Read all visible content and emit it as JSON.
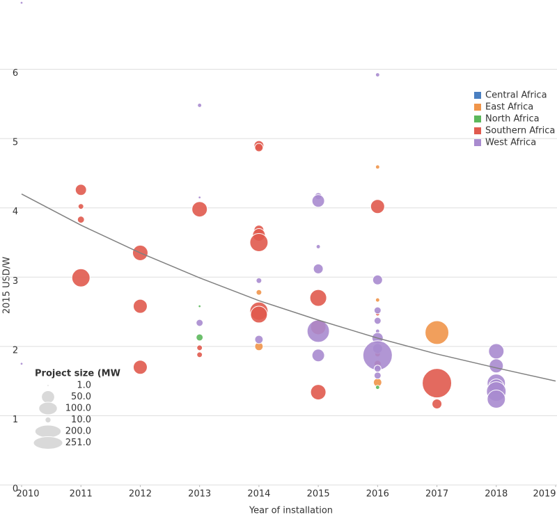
{
  "chart_data": {
    "type": "scatter",
    "xlabel": "Year of installation",
    "ylabel": "2015 USD/W",
    "xlim": [
      2010,
      2019
    ],
    "xticks": [
      2010,
      2011,
      2012,
      2013,
      2014,
      2015,
      2016,
      2017,
      2018,
      2019
    ],
    "ylim": [
      0,
      7
    ],
    "yticks": [
      0,
      1,
      2,
      3,
      4,
      5,
      6
    ],
    "grid": true,
    "legend": "upper right",
    "series": [
      {
        "name": "Central Africa",
        "color": "#4a7fc1",
        "x": [],
        "values": [],
        "sizes": []
      },
      {
        "name": "East Africa",
        "color": "#f0954a",
        "x": [
          2014,
          2014,
          2016,
          2016,
          2016,
          2017
        ],
        "values": [
          2.78,
          2.0,
          4.59,
          2.67,
          1.48,
          2.2
        ],
        "sizes": [
          9,
          20,
          5,
          5,
          20,
          164
        ]
      },
      {
        "name": "North Africa",
        "color": "#5cb85c",
        "x": [
          2013,
          2013,
          2016
        ],
        "values": [
          2.58,
          2.13,
          1.41
        ],
        "sizes": [
          2,
          14,
          5
        ]
      },
      {
        "name": "Southern Africa",
        "color": "#e05a4e",
        "x": [
          2011,
          2011,
          2011,
          2011,
          2012,
          2012,
          2012,
          2013,
          2013,
          2013,
          2014,
          2014,
          2014,
          2014,
          2014,
          2014,
          2014,
          2015,
          2015,
          2015,
          2016,
          2016,
          2016,
          2016,
          2017,
          2017
        ],
        "values": [
          4.26,
          4.02,
          3.83,
          2.99,
          3.35,
          2.58,
          1.7,
          3.98,
          1.98,
          1.88,
          4.9,
          4.87,
          3.68,
          3.61,
          3.5,
          2.51,
          2.46,
          2.7,
          2.28,
          1.34,
          4.02,
          2.47,
          1.89,
          1.75,
          1.47,
          1.17
        ],
        "sizes": [
          36,
          9,
          14,
          96,
          69,
          57,
          57,
          69,
          9,
          9,
          28,
          20,
          28,
          46,
          96,
          96,
          82,
          82,
          69,
          69,
          57,
          5,
          9,
          14,
          251,
          28
        ]
      },
      {
        "name": "West Africa",
        "color": "#a98bcf",
        "x": [
          2010,
          2010,
          2013,
          2013,
          2013,
          2014,
          2014,
          2015,
          2015,
          2015,
          2015,
          2015,
          2015,
          2016,
          2016,
          2016,
          2016,
          2016,
          2016,
          2016,
          2016,
          2016,
          2016,
          2018,
          2018,
          2018,
          2018,
          2018,
          2018
        ],
        "values": [
          6.96,
          1.75,
          5.48,
          4.15,
          2.34,
          2.95,
          2.1,
          4.17,
          4.1,
          3.44,
          3.12,
          2.22,
          1.87,
          5.92,
          2.96,
          2.52,
          2.37,
          2.22,
          2.12,
          1.97,
          1.87,
          1.68,
          1.58,
          1.93,
          1.72,
          1.47,
          1.42,
          1.35,
          1.24
        ],
        "sizes": [
          2,
          2,
          5,
          2,
          14,
          9,
          20,
          14,
          46,
          5,
          28,
          145,
          46,
          5,
          28,
          14,
          14,
          5,
          36,
          28,
          251,
          14,
          14,
          69,
          57,
          96,
          69,
          111,
          96
        ]
      }
    ],
    "trend": {
      "color": "#808080",
      "x": [
        2010,
        2011,
        2012,
        2013,
        2014,
        2015,
        2016,
        2017,
        2018,
        2019
      ],
      "values": [
        4.2,
        3.75,
        3.35,
        2.99,
        2.66,
        2.38,
        2.12,
        1.89,
        1.69,
        1.5
      ]
    },
    "size_legend": {
      "title": "Project size (MW",
      "values": [
        1,
        50,
        100,
        10,
        200,
        251
      ],
      "labels": [
        "1.0",
        "50.0",
        "100.0",
        "10.0",
        "200.0",
        "251.0"
      ]
    }
  }
}
